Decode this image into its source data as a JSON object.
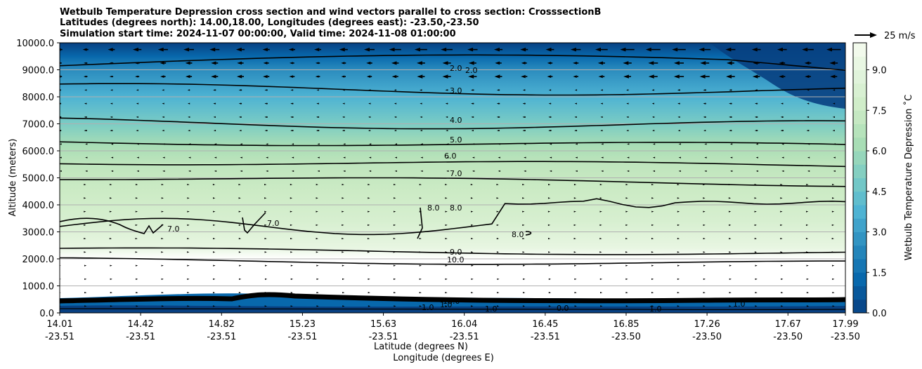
{
  "chart_data": {
    "type": "contour",
    "title_lines": [
      "Wetbulb Temperature Depression cross section and wind vectors parallel to cross section: CrosssectionB",
      "Latitudes (degrees north): 14.00,18.00, Longitudes (degrees east): -23.50,-23.50",
      "Simulation start time: 2024-11-07 00:00:00, Valid time: 2024-11-08 01:00:00"
    ],
    "ylabel": "Altitude (meters)",
    "xlabel_lat": "Latitude (degrees N)",
    "xlabel_lon": "Longitude (degrees E)",
    "y_ticks": [
      "10000.0",
      "9000.0",
      "8000.0",
      "7000.0",
      "6000.0",
      "5000.0",
      "4000.0",
      "3000.0",
      "2000.0",
      "1000.0",
      "0.0"
    ],
    "y_tick_values": [
      10000,
      9000,
      8000,
      7000,
      6000,
      5000,
      4000,
      3000,
      2000,
      1000,
      0
    ],
    "ylim": [
      0,
      10000
    ],
    "x_ticks_lat": [
      "14.01",
      "14.42",
      "14.82",
      "15.23",
      "15.63",
      "16.04",
      "16.45",
      "16.85",
      "17.26",
      "17.67",
      "17.99"
    ],
    "x_ticks_lon": [
      "-23.51",
      "-23.51",
      "-23.51",
      "-23.51",
      "-23.51",
      "-23.51",
      "-23.51",
      "-23.50",
      "-23.50",
      "-23.50",
      "-23.50"
    ],
    "colorbar": {
      "label": "Wetbulb Temperature Depression ˚C",
      "ticks": [
        "0.0",
        "1.5",
        "3.0",
        "4.5",
        "6.0",
        "7.5",
        "9.0"
      ],
      "tick_values": [
        0,
        1.5,
        3.0,
        4.5,
        6.0,
        7.5,
        9.0
      ],
      "range": [
        0,
        10
      ],
      "colors": [
        "#084081",
        "#0868ac",
        "#2b8cbe",
        "#4eb3d3",
        "#7bccc4",
        "#a8ddb5",
        "#ccebc5",
        "#e0f3db",
        "#f7fcf0"
      ]
    },
    "quiver_key": {
      "label": "25 m/s",
      "speed": 25
    },
    "contour_labels": [
      "2.0",
      "2.0",
      "3.0",
      "4.0",
      "5.0",
      "6.0",
      "7.0",
      "7.0",
      "7.0",
      "8.0",
      "8.0",
      "8.0",
      "9.0",
      "10.0",
      "10.0",
      "1.0",
      "1.0",
      "1.0",
      "0.0",
      "1.0",
      "1.0"
    ],
    "contour_levels": [
      2.0,
      3.0,
      4.0,
      5.0,
      6.0,
      7.0,
      8.0,
      9.0,
      10.0
    ],
    "contour_level_altitudes_m": [
      9150,
      8320,
      7050,
      6320,
      5590,
      5020,
      3930,
      2330,
      1950
    ],
    "wind_regimes": [
      {
        "from_m": 9500,
        "to_m": 10000,
        "direction": "toward_south",
        "speed_ms": 12
      },
      {
        "from_m": 8500,
        "to_m": 9500,
        "direction": "toward_south",
        "speed_ms": 8
      },
      {
        "from_m": 6500,
        "to_m": 8500,
        "direction": "toward_south",
        "speed_ms": 4
      },
      {
        "from_m": 5000,
        "to_m": 6500,
        "direction": "toward_south",
        "speed_ms": 1
      },
      {
        "from_m": 2000,
        "to_m": 5000,
        "direction": "toward_north",
        "speed_ms": 2
      },
      {
        "from_m": 0,
        "to_m": 2000,
        "direction": "toward_north",
        "speed_ms": 3
      }
    ]
  }
}
